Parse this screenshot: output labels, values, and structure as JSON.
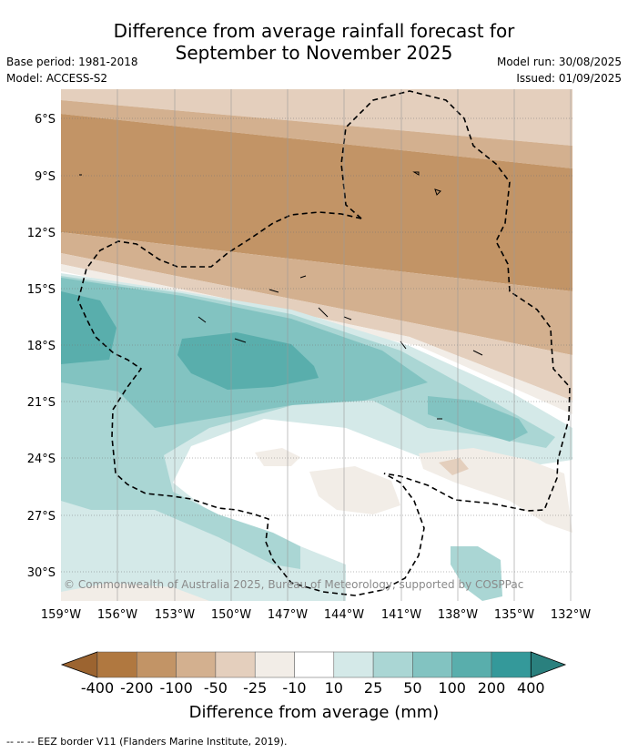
{
  "title_line1": "Difference from average rainfall forecast for",
  "title_line2": "September to November 2025",
  "meta_left": [
    "Base period: 1981-2018",
    "Model: ACCESS-S2"
  ],
  "meta_right": [
    "Model run: 30/08/2025",
    "Issued: 01/09/2025"
  ],
  "lat_labels": [
    "6°S",
    "9°S",
    "12°S",
    "15°S",
    "18°S",
    "21°S",
    "24°S",
    "27°S",
    "30°S"
  ],
  "lon_labels": [
    "159°W",
    "156°W",
    "153°W",
    "150°W",
    "147°W",
    "144°W",
    "141°W",
    "138°W",
    "135°W",
    "132°W"
  ],
  "copyright": "© Commonwealth of Australia 2025, Bureau of Meteorology, supported by COSPPac",
  "colorbar": {
    "ticks": [
      "-400",
      "-200",
      "-100",
      "-50",
      "-25",
      "-10",
      "10",
      "25",
      "50",
      "100",
      "200",
      "400"
    ],
    "colors": [
      "#b07840",
      "#c29466",
      "#d3b08f",
      "#e4cfbd",
      "#f2ede7",
      "#ffffff",
      "#d4e9e8",
      "#aad6d4",
      "#82c3c1",
      "#59aeac",
      "#34999a"
    ],
    "low_extend_color": "#9c6430",
    "high_extend_color": "#2a807e",
    "label": "Difference from average (mm)"
  },
  "footer": "--  --  -- EEZ border V11 (Flanders Marine Institute, 2019)."
}
